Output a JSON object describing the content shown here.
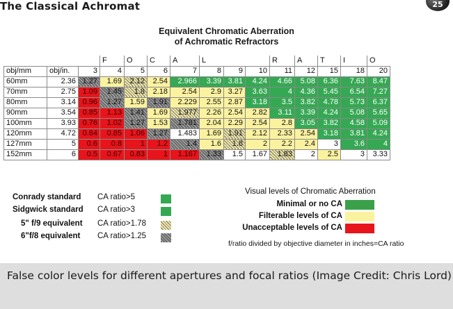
{
  "header": {
    "title": "The Classical Achromat",
    "page_number": "25"
  },
  "chart": {
    "title_line1": "Equivalent Chromatic Aberration",
    "title_line2": "of Achromatic Refractors"
  },
  "focal_ratio_letters": [
    "F",
    "O",
    "C",
    "A",
    "L",
    "R",
    "A",
    "T",
    "I",
    "O"
  ],
  "table": {
    "col_header_1": "obj/mm",
    "col_header_2": "obj/in.",
    "focal_ratios": [
      "3",
      "4",
      "5",
      "6",
      "7",
      "8",
      "9",
      "10",
      "11",
      "12",
      "15",
      "18",
      "20"
    ],
    "rows": [
      {
        "mm": "60mm",
        "in": "2.36",
        "values": [
          "1.27",
          "1.69",
          "2.12",
          "2.54",
          "2.966",
          "3.39",
          "3.81",
          "4.24",
          "4.66",
          "5.08",
          "6.36",
          "7.63",
          "8.47"
        ]
      },
      {
        "mm": "70mm",
        "in": "2.75",
        "values": [
          "1.09",
          "1.45",
          "1.8",
          "2.18",
          "2.54",
          "2.9",
          "3.27",
          "3.63",
          "4",
          "4.36",
          "5.45",
          "6.54",
          "7.27"
        ]
      },
      {
        "mm": "80mm",
        "in": "3.14",
        "values": [
          "0.96",
          "1.27",
          "1.59",
          "1.91",
          "2.229",
          "2.55",
          "2.87",
          "3.18",
          "3.5",
          "3.82",
          "4.78",
          "5.73",
          "6.37"
        ]
      },
      {
        "mm": "90mm",
        "in": "3.54",
        "values": [
          "0.85",
          "1.13",
          "1.41",
          "1.69",
          "1.977",
          "2.26",
          "2.54",
          "2.82",
          "3.11",
          "3.39",
          "4.24",
          "5.08",
          "5.65"
        ]
      },
      {
        "mm": "100mm",
        "in": "3.93",
        "values": [
          "0.76",
          "1.02",
          "1.27",
          "1.53",
          "1.781",
          "2.04",
          "2.29",
          "2.54",
          "2.8",
          "3.05",
          "3.82",
          "4.58",
          "5.09"
        ]
      },
      {
        "mm": "120mm",
        "in": "4.72",
        "values": [
          "0.64",
          "0.85",
          "1.06",
          "1.27",
          "1.483",
          "1.69",
          "1.91",
          "2.12",
          "2.33",
          "2.54",
          "3.18",
          "3.81",
          "4.24"
        ]
      },
      {
        "mm": "127mm",
        "in": "5",
        "values": [
          "0.6",
          "0.8",
          "1",
          "1.2",
          "1.4",
          "1.6",
          "1.8",
          "2",
          "2.2",
          "2.4",
          "3",
          "3.6",
          "4"
        ]
      },
      {
        "mm": "152mm",
        "in": "6",
        "values": [
          "0.5",
          "0.67",
          "0.83",
          "1",
          "1.167",
          "1.33",
          "1.5",
          "1.67",
          "1.83",
          "2",
          "2.5",
          "3",
          "3.33"
        ]
      }
    ],
    "cell_colors": [
      [
        "hd",
        "y",
        "hl",
        "y",
        "g",
        "g",
        "g",
        "g",
        "g",
        "g",
        "g",
        "g",
        "g"
      ],
      [
        "r",
        "hd",
        "hl",
        "y",
        "y",
        "y",
        "y",
        "g",
        "g",
        "g",
        "g",
        "g",
        "g"
      ],
      [
        "r",
        "hd",
        "y",
        "hd",
        "y",
        "y",
        "y",
        "g",
        "g",
        "g",
        "g",
        "g",
        "g"
      ],
      [
        "r",
        "r",
        "hd",
        "y",
        "hl",
        "y",
        "y",
        "y",
        "g",
        "g",
        "g",
        "g",
        "g"
      ],
      [
        "r",
        "r",
        "hd",
        "y",
        "hd",
        "y",
        "y",
        "y",
        "y",
        "g",
        "g",
        "g",
        "g"
      ],
      [
        "r",
        "r",
        "r",
        "hd",
        "w",
        "y",
        "hl",
        "y",
        "y",
        "y",
        "g",
        "g",
        "g"
      ],
      [
        "r",
        "r",
        "r",
        "r",
        "hd",
        "y",
        "hl",
        "y",
        "y",
        "y",
        "w",
        "g",
        "g"
      ],
      [
        "r",
        "r",
        "r",
        "r",
        "r",
        "hd",
        "w",
        "w",
        "hl",
        "w",
        "y",
        "w",
        "w"
      ]
    ]
  },
  "legend": [
    {
      "name": "Conrady standard",
      "value": "CA ratio>5",
      "swatch": "green"
    },
    {
      "name": "Sidgwick standard",
      "value": "CA ratio>3",
      "swatch": "green"
    },
    {
      "name": "5\" f/9  equivalent",
      "value": "CA ratio>1.78",
      "swatch": "hatch-light"
    },
    {
      "name": "6\"f/8 equivalent",
      "value": "CA ratio>1.25",
      "swatch": "hatch-dark"
    }
  ],
  "visual_levels": {
    "title": "Visual levels of Chromatic Aberration",
    "items": [
      {
        "label": "Minimal or no CA",
        "color": "#3aa14a"
      },
      {
        "label": "Filterable levels of CA",
        "color": "#fbf2a0"
      },
      {
        "label": "Unacceptable levels of CA",
        "color": "#e8141b"
      }
    ],
    "note": "f/ratio divided by objective diameter in inches=CA ratio"
  },
  "caption": "False color levels for different apertures and focal ratios (Image Credit: Chris Lord)",
  "colors": {
    "red": "#e8141b",
    "yellow": "#fbf2a0",
    "green": "#35a853",
    "caption_bg": "#dedede"
  }
}
